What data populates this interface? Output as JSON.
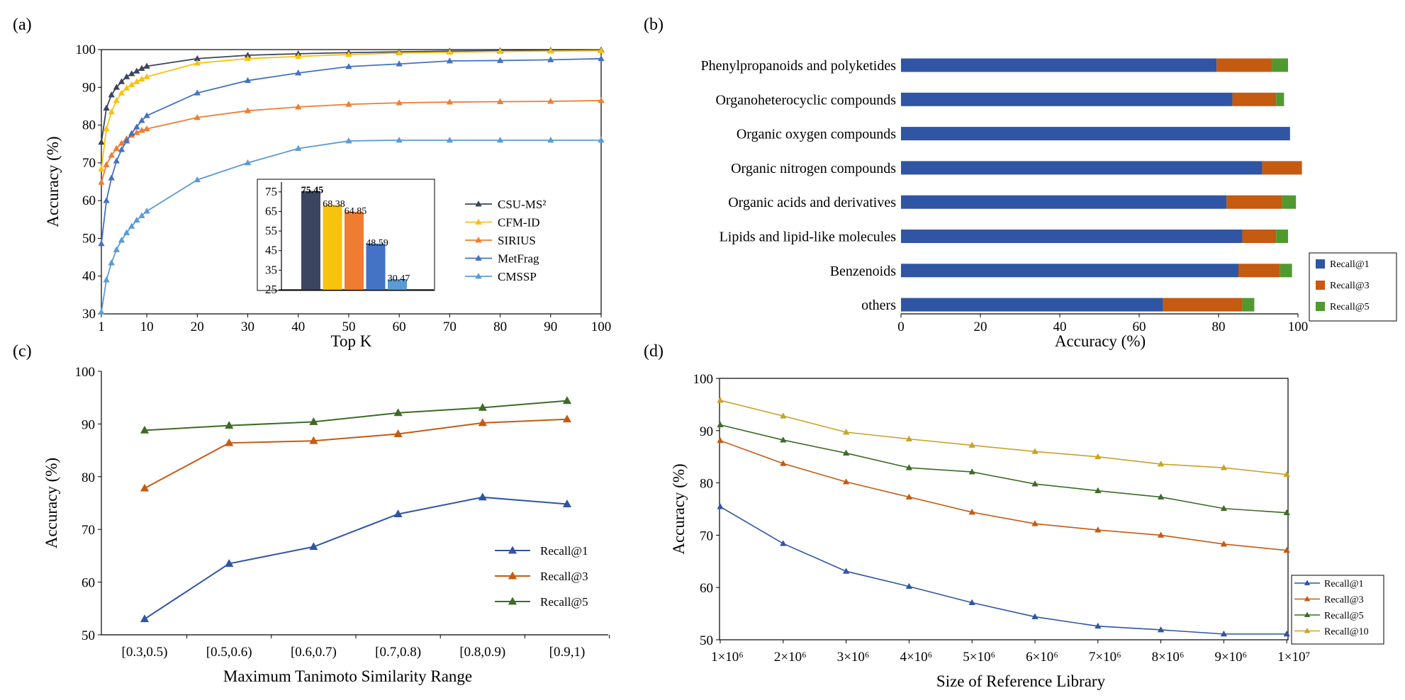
{
  "colors": {
    "csu": "#3b4560",
    "cfm": "#f9c20e",
    "sirius": "#ee7d31",
    "metfrag": "#4472c4",
    "cmssp": "#5b9bd5",
    "r1": "#2f55a4",
    "r3": "#c55a11",
    "r5": "#3d6b27",
    "r5_bar": "#4e9a2f",
    "r10": "#c9a227"
  },
  "panels": {
    "a": "(a)",
    "b": "(b)",
    "c": "(c)",
    "d": "(d)"
  },
  "chart_data": [
    {
      "id": "a",
      "type": "line",
      "xlabel": "Top K",
      "ylabel": "Accuracy (%)",
      "xlim": [
        1,
        100
      ],
      "ylim": [
        30,
        100
      ],
      "xticks": [
        1,
        10,
        20,
        30,
        40,
        50,
        60,
        70,
        80,
        90,
        100
      ],
      "yticks": [
        30,
        40,
        50,
        60,
        70,
        80,
        90,
        100
      ],
      "legend_position": "right",
      "series": [
        {
          "name": "CSU-MS²",
          "color": "#3b4560",
          "x": [
            1,
            2,
            3,
            4,
            5,
            6,
            7,
            8,
            9,
            10,
            20,
            30,
            40,
            50,
            60,
            70,
            80,
            90,
            100
          ],
          "y": [
            75.45,
            84.5,
            88,
            90,
            91.5,
            92.8,
            93.6,
            94.3,
            95,
            95.6,
            97.6,
            98.5,
            98.9,
            99.2,
            99.4,
            99.6,
            99.7,
            99.8,
            99.9
          ]
        },
        {
          "name": "CFM-ID",
          "color": "#f9c20e",
          "x": [
            1,
            2,
            3,
            4,
            5,
            6,
            7,
            8,
            9,
            10,
            20,
            30,
            40,
            50,
            60,
            70,
            80,
            90,
            100
          ],
          "y": [
            68.38,
            79,
            83.5,
            86.5,
            88.5,
            89.8,
            90.7,
            91.5,
            92.2,
            92.8,
            96.4,
            97.6,
            98.2,
            98.7,
            99.1,
            99.3,
            99.5,
            99.6,
            99.7
          ]
        },
        {
          "name": "SIRIUS",
          "color": "#ee7d31",
          "x": [
            1,
            2,
            3,
            4,
            5,
            6,
            7,
            8,
            9,
            10,
            20,
            30,
            40,
            50,
            60,
            70,
            80,
            90,
            100
          ],
          "y": [
            64.85,
            69.5,
            72,
            73.8,
            75.2,
            76.4,
            77.3,
            78,
            78.6,
            79,
            82,
            83.8,
            84.8,
            85.5,
            85.9,
            86.1,
            86.2,
            86.3,
            86.5
          ]
        },
        {
          "name": "MetFrag",
          "color": "#4472c4",
          "x": [
            1,
            2,
            3,
            4,
            5,
            6,
            7,
            8,
            9,
            10,
            20,
            30,
            40,
            50,
            60,
            70,
            80,
            90,
            100
          ],
          "y": [
            48.59,
            60,
            66,
            70.5,
            73.5,
            75.8,
            77.8,
            79.5,
            81.2,
            82.5,
            88.5,
            91.8,
            93.8,
            95.5,
            96.2,
            97,
            97.1,
            97.3,
            97.6
          ]
        },
        {
          "name": "CMSSP",
          "color": "#5b9bd5",
          "x": [
            1,
            2,
            3,
            4,
            5,
            6,
            7,
            8,
            9,
            10,
            20,
            30,
            40,
            50,
            60,
            70,
            80,
            90,
            100
          ],
          "y": [
            30.47,
            39,
            43.5,
            47,
            49.5,
            51.5,
            53.2,
            54.8,
            56,
            57.2,
            65.5,
            70,
            73.8,
            75.8,
            76,
            76,
            76,
            76,
            76
          ]
        }
      ],
      "inset": {
        "type": "bar",
        "categories": [
          "CSU-MS²",
          "CFM-ID",
          "SIRIUS",
          "MetFrag",
          "CMSSP"
        ],
        "values": [
          75.45,
          68.38,
          64.85,
          48.59,
          30.47
        ],
        "value_labels": [
          "75.45",
          "68.38",
          "64.85",
          "48.59",
          "30.47"
        ],
        "colors": [
          "#3b4560",
          "#f9c20e",
          "#ee7d31",
          "#4472c4",
          "#5b9bd5"
        ],
        "ylim": [
          25,
          80
        ],
        "yticks": [
          25,
          35,
          45,
          55,
          65,
          75
        ]
      }
    },
    {
      "id": "b",
      "type": "bar",
      "orientation": "horizontal",
      "stacked": true,
      "xlabel": "Accuracy (%)",
      "xlim": [
        0,
        100
      ],
      "xticks": [
        0,
        20,
        40,
        60,
        80,
        100
      ],
      "legend_position": "right",
      "categories": [
        "Phenylpropanoids and polyketides",
        "Organoheterocyclic compounds",
        "Organic oxygen compounds",
        "Organic nitrogen compounds",
        "Organic acids and derivatives",
        "Lipids and lipid-like molecules",
        "Benzenoids",
        "others"
      ],
      "series": [
        {
          "name": "Recall@1",
          "color": "#2f55a4",
          "values": [
            79.5,
            83.5,
            98,
            91,
            82,
            86,
            85,
            66
          ]
        },
        {
          "name": "Recall@3",
          "color": "#c55a11",
          "values": [
            14,
            11,
            0,
            10,
            14,
            8.5,
            10.5,
            20
          ]
        },
        {
          "name": "Recall@5",
          "color": "#4e9a2f",
          "values": [
            4,
            2,
            0,
            0,
            3.5,
            3,
            3,
            3
          ]
        }
      ]
    },
    {
      "id": "c",
      "type": "line",
      "xlabel": "Maximum Tanimoto Similarity Range",
      "ylabel": "Accuracy (%)",
      "ylim": [
        50,
        100
      ],
      "yticks": [
        50,
        60,
        70,
        80,
        90,
        100
      ],
      "categories": [
        "[0.3,0.5)",
        "[0.5,0.6)",
        "[0.6,0.7)",
        "[0.7,0.8)",
        "[0.8,0.9)",
        "[0.9,1)"
      ],
      "legend_position": "lower right",
      "series": [
        {
          "name": "Recall@1",
          "color": "#2f55a4",
          "values": [
            53,
            63.5,
            66.7,
            72.9,
            76.1,
            74.8
          ]
        },
        {
          "name": "Recall@3",
          "color": "#c55a11",
          "values": [
            77.8,
            86.4,
            86.8,
            88.1,
            90.2,
            90.9
          ]
        },
        {
          "name": "Recall@5",
          "color": "#3d6b27",
          "values": [
            88.8,
            89.7,
            90.4,
            92.1,
            93.1,
            94.4
          ]
        }
      ]
    },
    {
      "id": "d",
      "type": "line",
      "xlabel": "Size of Reference Library",
      "ylabel": "Accuracy (%)",
      "ylim": [
        50,
        100
      ],
      "yticks": [
        50,
        60,
        70,
        80,
        90,
        100
      ],
      "categories": [
        "1×10⁶",
        "2×10⁶",
        "3×10⁶",
        "4×10⁶",
        "5×10⁶",
        "6×10⁶",
        "7×10⁶",
        "8×10⁶",
        "9×10⁶",
        "1×10⁷"
      ],
      "legend_position": "lower right",
      "series": [
        {
          "name": "Recall@1",
          "color": "#2f55a4",
          "values": [
            75.45,
            68.4,
            63.1,
            60.2,
            57.1,
            54.4,
            52.6,
            51.9,
            51.1,
            51.1
          ]
        },
        {
          "name": "Recall@3",
          "color": "#c55a11",
          "values": [
            88.1,
            83.7,
            80.2,
            77.3,
            74.4,
            72.2,
            71.0,
            70.0,
            68.3,
            67.1
          ]
        },
        {
          "name": "Recall@5",
          "color": "#3d6b27",
          "values": [
            91.1,
            88.2,
            85.7,
            82.9,
            82.1,
            79.8,
            78.5,
            77.3,
            75.1,
            74.3
          ]
        },
        {
          "name": "Recall@10",
          "color": "#c9a227",
          "values": [
            95.8,
            92.8,
            89.7,
            88.4,
            87.2,
            86.0,
            85.0,
            83.6,
            82.9,
            81.6
          ]
        }
      ]
    }
  ]
}
